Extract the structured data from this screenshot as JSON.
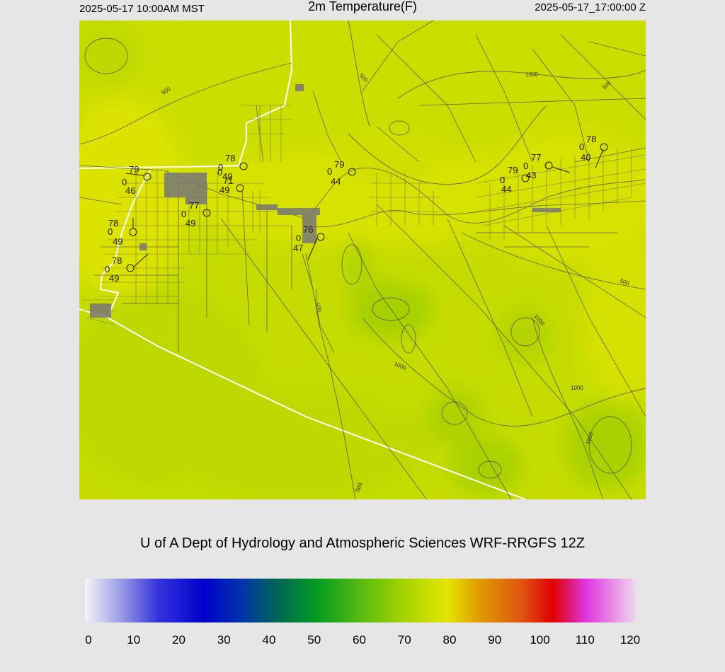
{
  "header": {
    "local_time": "2025-05-17 10:00AM MST",
    "title": "2m Temperature(F)",
    "utc_time": "2025-05-17_17:00:00 Z"
  },
  "credit": "U of A Dept of Hydrology and Atmospheric Sciences WRF-RRGFS 12Z",
  "colorbar": {
    "min": 0,
    "max": 120,
    "tick_labels": [
      "0",
      "10",
      "20",
      "30",
      "40",
      "50",
      "60",
      "70",
      "80",
      "90",
      "100",
      "110",
      "120"
    ],
    "stops": [
      {
        "value": 0,
        "color": "#f4f4f8"
      },
      {
        "value": 8,
        "color": "#9999e6"
      },
      {
        "value": 16,
        "color": "#3333dd"
      },
      {
        "value": 26,
        "color": "#0000cc"
      },
      {
        "value": 34,
        "color": "#0033aa"
      },
      {
        "value": 42,
        "color": "#006655"
      },
      {
        "value": 50,
        "color": "#009922"
      },
      {
        "value": 60,
        "color": "#55bb11"
      },
      {
        "value": 70,
        "color": "#aad400"
      },
      {
        "value": 79,
        "color": "#e5e500"
      },
      {
        "value": 86,
        "color": "#e09a00"
      },
      {
        "value": 95,
        "color": "#e05511"
      },
      {
        "value": 102,
        "color": "#e00000"
      },
      {
        "value": 109,
        "color": "#dd33dd"
      },
      {
        "value": 120,
        "color": "#f0d8f0"
      }
    ]
  },
  "map": {
    "base_color": "#c6dc00",
    "contour_labels": [
      "500",
      "500",
      "1000",
      "500",
      "500",
      "1000",
      "1000",
      "1000",
      "500",
      "1500"
    ],
    "stations": [
      {
        "temp": "79",
        "dew": "46",
        "gust": "0"
      },
      {
        "temp": "78",
        "dew": "49",
        "gust": "0"
      },
      {
        "temp": "77",
        "dew": "49",
        "gust": "0"
      },
      {
        "temp": "71",
        "dew": "49",
        "gust": "0"
      },
      {
        "temp": "79",
        "dew": "44",
        "gust": "0"
      },
      {
        "temp": "76",
        "dew": "47",
        "gust": "0"
      },
      {
        "temp": "78",
        "dew": "49",
        "gust": "0"
      },
      {
        "temp": "78",
        "dew": "49",
        "gust": "0"
      },
      {
        "temp": "79",
        "dew": "44",
        "gust": "0"
      },
      {
        "temp": "77",
        "dew": "43",
        "gust": "0"
      },
      {
        "temp": "78",
        "dew": "40",
        "gust": "0"
      }
    ]
  }
}
